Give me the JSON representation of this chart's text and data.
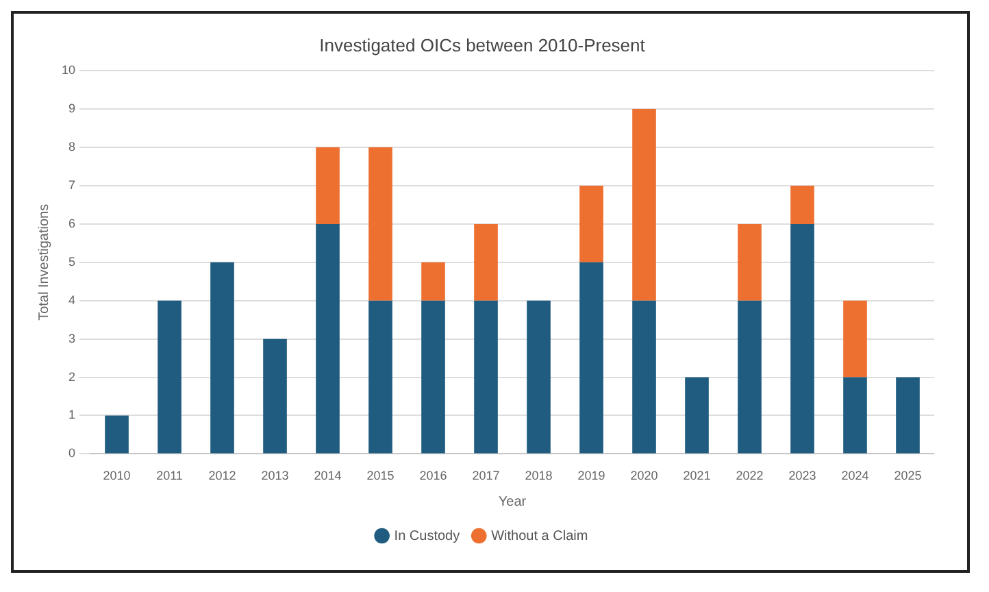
{
  "chart_data": {
    "type": "bar",
    "title": "Investigated OICs between 2010-Present",
    "xlabel": "Year",
    "ylabel": "Total Investigations",
    "categories": [
      "2010",
      "2011",
      "2012",
      "2013",
      "2014",
      "2015",
      "2016",
      "2017",
      "2018",
      "2019",
      "2020",
      "2021",
      "2022",
      "2023",
      "2024",
      "2025"
    ],
    "series": [
      {
        "name": "In Custody",
        "color": "#1f5c80",
        "values": [
          1,
          4,
          5,
          3,
          6,
          4,
          4,
          4,
          4,
          5,
          4,
          2,
          4,
          6,
          2,
          2
        ]
      },
      {
        "name": "Without a Claim",
        "color": "#ed7030",
        "values": [
          0,
          0,
          0,
          0,
          2,
          4,
          1,
          2,
          0,
          2,
          5,
          0,
          2,
          1,
          2,
          0
        ]
      }
    ],
    "stacked": true,
    "ylim": [
      0,
      10
    ],
    "yticks": [
      0,
      1,
      2,
      3,
      4,
      5,
      6,
      7,
      8,
      9,
      10
    ],
    "grid": "y",
    "legend": "bottom"
  }
}
